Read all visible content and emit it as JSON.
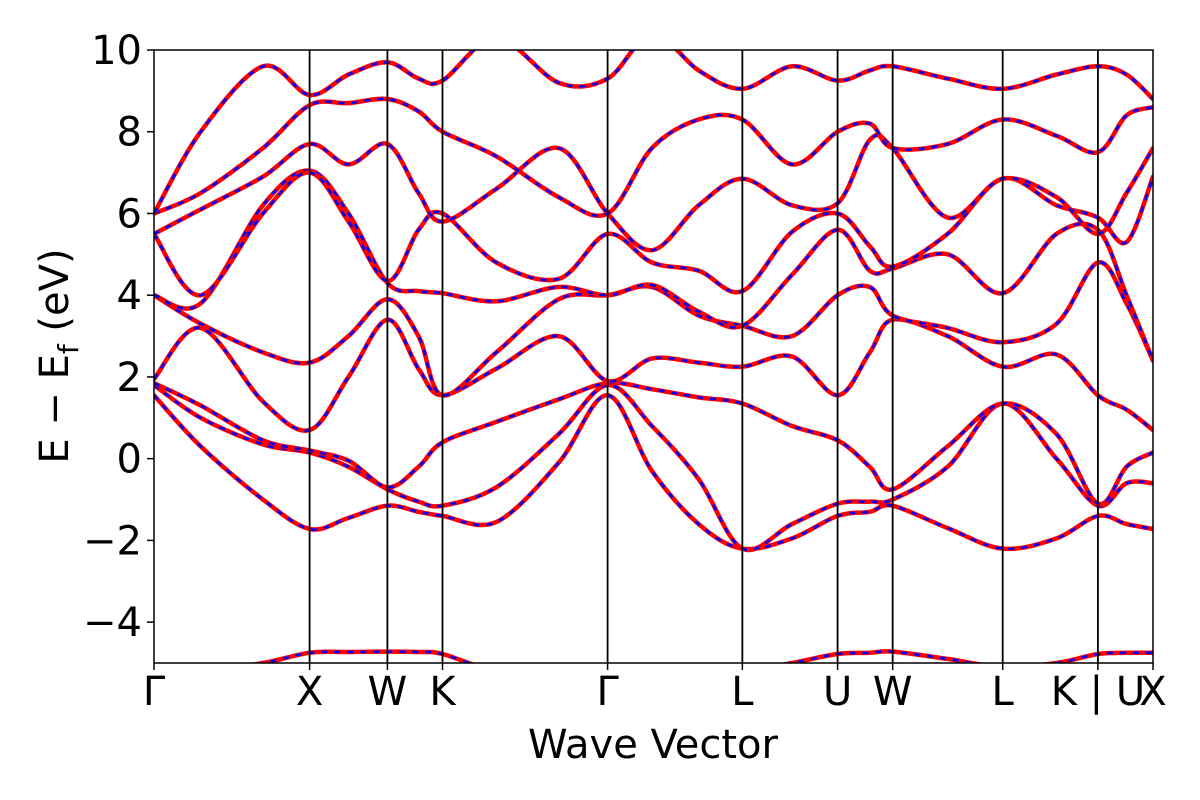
{
  "chart_data": {
    "type": "line",
    "title": "",
    "xlabel": "Wave Vector",
    "ylabel": "E − E_f (eV)",
    "ylabel_main": "E − E",
    "ylabel_sub": "f",
    "ylabel_tail": " (eV)",
    "ylim": [
      -5,
      10
    ],
    "yticks": [
      -4,
      -2,
      0,
      2,
      4,
      6,
      8,
      10
    ],
    "ytick_labels": [
      "−4",
      "−2",
      "0",
      "2",
      "4",
      "6",
      "8",
      "10"
    ],
    "xlim": [
      0,
      7.085
    ],
    "kpoints": [
      {
        "label": "Γ",
        "x": 0.0
      },
      {
        "label": "X",
        "x": 1.0
      },
      {
        "label": "W",
        "x": 1.5
      },
      {
        "label": "K",
        "x": 1.854
      },
      {
        "label": "Γ",
        "x": 2.915
      },
      {
        "label": "L",
        "x": 3.781
      },
      {
        "label": "U",
        "x": 4.393
      },
      {
        "label": "W",
        "x": 4.747
      },
      {
        "label": "L",
        "x": 5.454
      },
      {
        "label": "K | U",
        "x": 6.066
      },
      {
        "label": "X",
        "x": 6.42
      }
    ],
    "colors": {
      "series_a": "#ff0000",
      "series_b": "#0000ff"
    },
    "grid": false,
    "series_styles": [
      "solid red",
      "dashed blue"
    ],
    "bands": [
      {
        "x": [
          0,
          0.3,
          0.7,
          1.0,
          1.25,
          1.5,
          1.7,
          1.854,
          2.2,
          2.6,
          2.915,
          3.2,
          3.5,
          3.781,
          4.1,
          4.393,
          4.6,
          4.747,
          5.1,
          5.454,
          5.8,
          6.066,
          6.25,
          6.42
        ],
        "y": [
          -5.2,
          -5.2,
          -5.0,
          -4.75,
          -4.73,
          -4.72,
          -4.73,
          -4.78,
          -5.2,
          -5.3,
          -5.3,
          -5.3,
          -5.25,
          -5.2,
          -5.0,
          -4.78,
          -4.75,
          -4.72,
          -4.9,
          -5.1,
          -5.0,
          -4.78,
          -4.75,
          -4.75
        ]
      },
      {
        "x": [
          0,
          0.3,
          0.7,
          1.0,
          1.25,
          1.5,
          1.7,
          1.854,
          2.2,
          2.6,
          2.915,
          3.2,
          3.5,
          3.781,
          4.1,
          4.393,
          4.6,
          4.747,
          5.1,
          5.454,
          5.8,
          6.066,
          6.25,
          6.42
        ],
        "y": [
          1.55,
          0.3,
          -1.0,
          -1.72,
          -1.45,
          -1.15,
          -1.3,
          -1.4,
          -1.55,
          -0.1,
          1.55,
          -0.3,
          -1.6,
          -2.2,
          -1.95,
          -1.4,
          -1.3,
          -1.15,
          -1.7,
          -2.2,
          -1.95,
          -1.4,
          -1.6,
          -1.72
        ]
      },
      {
        "x": [
          0,
          0.3,
          0.7,
          1.0,
          1.25,
          1.5,
          1.7,
          1.854,
          2.2,
          2.6,
          2.915,
          3.2,
          3.5,
          3.781,
          4.1,
          4.393,
          4.6,
          4.747,
          5.1,
          5.454,
          5.8,
          6.066,
          6.25,
          6.42
        ],
        "y": [
          1.8,
          1.0,
          0.35,
          0.15,
          -0.2,
          -0.75,
          -1.05,
          -1.15,
          -0.7,
          0.6,
          1.8,
          0.8,
          -0.5,
          -2.2,
          -1.6,
          -1.1,
          -1.05,
          -1.0,
          -0.2,
          1.35,
          0.0,
          -1.15,
          -0.6,
          -0.6
        ]
      },
      {
        "x": [
          0,
          0.3,
          0.7,
          1.0,
          1.25,
          1.5,
          1.7,
          1.854,
          2.2,
          2.6,
          2.915,
          3.2,
          3.5,
          3.781,
          4.1,
          4.393,
          4.6,
          4.747,
          5.1,
          5.454,
          5.8,
          6.066,
          6.25,
          6.42
        ],
        "y": [
          1.85,
          1.3,
          0.45,
          0.2,
          -0.05,
          -0.7,
          -0.2,
          0.4,
          0.9,
          1.45,
          1.85,
          1.7,
          1.5,
          1.35,
          0.8,
          0.45,
          -0.2,
          -0.75,
          0.3,
          1.35,
          0.6,
          -1.1,
          -0.2,
          0.15
        ]
      },
      {
        "x": [
          0,
          0.3,
          0.7,
          1.0,
          1.25,
          1.5,
          1.7,
          1.854,
          2.2,
          2.6,
          2.915,
          3.2,
          3.5,
          3.781,
          4.1,
          4.393,
          4.6,
          4.747,
          5.1,
          5.454,
          5.8,
          6.066,
          6.25,
          6.42
        ],
        "y": [
          1.95,
          3.2,
          1.4,
          0.7,
          2.0,
          3.4,
          2.2,
          1.55,
          2.2,
          3.0,
          1.9,
          2.45,
          2.35,
          2.25,
          2.5,
          1.55,
          2.6,
          3.4,
          3.0,
          2.25,
          2.55,
          1.55,
          1.2,
          0.7
        ]
      },
      {
        "x": [
          0,
          0.3,
          0.7,
          1.0,
          1.25,
          1.5,
          1.7,
          1.854,
          2.2,
          2.6,
          2.915,
          3.2,
          3.5,
          3.781,
          4.1,
          4.393,
          4.6,
          4.747,
          5.1,
          5.454,
          5.8,
          6.066,
          6.25,
          6.42
        ],
        "y": [
          4.0,
          3.3,
          2.6,
          2.35,
          3.0,
          3.9,
          3.0,
          1.55,
          2.6,
          3.9,
          4.0,
          4.2,
          3.5,
          3.25,
          3.0,
          4.0,
          4.2,
          3.5,
          3.2,
          2.85,
          3.3,
          4.8,
          3.8,
          2.4
        ]
      },
      {
        "x": [
          0,
          0.3,
          0.7,
          1.0,
          1.25,
          1.5,
          1.7,
          1.854,
          2.2,
          2.6,
          2.915,
          3.2,
          3.5,
          3.781,
          4.1,
          4.393,
          4.6,
          4.747,
          5.1,
          5.454,
          5.8,
          6.066,
          6.25,
          6.42
        ],
        "y": [
          4.0,
          3.8,
          6.2,
          7.05,
          6.0,
          4.3,
          4.1,
          4.05,
          3.85,
          4.2,
          4.0,
          4.25,
          3.6,
          3.25,
          4.5,
          5.6,
          4.6,
          4.65,
          5.0,
          4.05,
          5.5,
          5.6,
          4.0,
          2.4
        ]
      },
      {
        "x": [
          0,
          0.3,
          0.7,
          1.0,
          1.25,
          1.5,
          1.7,
          1.854,
          2.2,
          2.6,
          2.915,
          3.2,
          3.5,
          3.781,
          4.1,
          4.393,
          4.6,
          4.747,
          5.1,
          5.454,
          5.8,
          6.066,
          6.25,
          6.42
        ],
        "y": [
          5.5,
          4.0,
          6.0,
          7.0,
          5.8,
          4.35,
          5.6,
          6.0,
          4.8,
          4.4,
          5.5,
          4.8,
          4.6,
          4.1,
          5.55,
          6.0,
          5.2,
          4.7,
          5.5,
          6.85,
          6.2,
          5.9,
          5.3,
          6.9
        ]
      },
      {
        "x": [
          0,
          0.3,
          0.7,
          1.0,
          1.25,
          1.5,
          1.7,
          1.854,
          2.2,
          2.6,
          2.915,
          3.2,
          3.5,
          3.781,
          4.1,
          4.393,
          4.6,
          4.747,
          5.1,
          5.454,
          5.8,
          6.066,
          6.25,
          6.42
        ],
        "y": [
          5.5,
          6.1,
          6.9,
          7.7,
          7.2,
          7.7,
          6.5,
          5.8,
          6.6,
          7.6,
          6.0,
          5.1,
          6.2,
          6.85,
          6.2,
          6.25,
          7.8,
          7.6,
          5.9,
          6.85,
          6.4,
          5.5,
          6.5,
          7.6
        ]
      },
      {
        "x": [
          0,
          0.3,
          0.7,
          1.0,
          1.25,
          1.5,
          1.7,
          1.854,
          2.2,
          2.6,
          2.915,
          3.2,
          3.5,
          3.781,
          4.1,
          4.393,
          4.6,
          4.747,
          5.1,
          5.454,
          5.8,
          6.066,
          6.25,
          6.42
        ],
        "y": [
          6.0,
          6.5,
          7.6,
          8.65,
          8.7,
          8.8,
          8.5,
          8.0,
          7.4,
          6.4,
          6.0,
          7.6,
          8.3,
          8.3,
          7.2,
          8.0,
          8.2,
          7.6,
          7.7,
          8.3,
          7.9,
          7.5,
          8.4,
          8.6
        ]
      },
      {
        "x": [
          0,
          0.3,
          0.7,
          1.0,
          1.25,
          1.5,
          1.7,
          1.854,
          2.2,
          2.6,
          2.915,
          3.2,
          3.5,
          3.781,
          4.1,
          4.393,
          4.6,
          4.747,
          5.1,
          5.454,
          5.8,
          6.066,
          6.25,
          6.42
        ],
        "y": [
          6.0,
          8.0,
          9.6,
          8.9,
          9.4,
          9.7,
          9.3,
          9.25,
          10.3,
          9.2,
          9.3,
          10.4,
          9.5,
          9.05,
          9.6,
          9.25,
          9.5,
          9.6,
          9.3,
          9.05,
          9.4,
          9.6,
          9.4,
          8.8
        ]
      }
    ]
  }
}
